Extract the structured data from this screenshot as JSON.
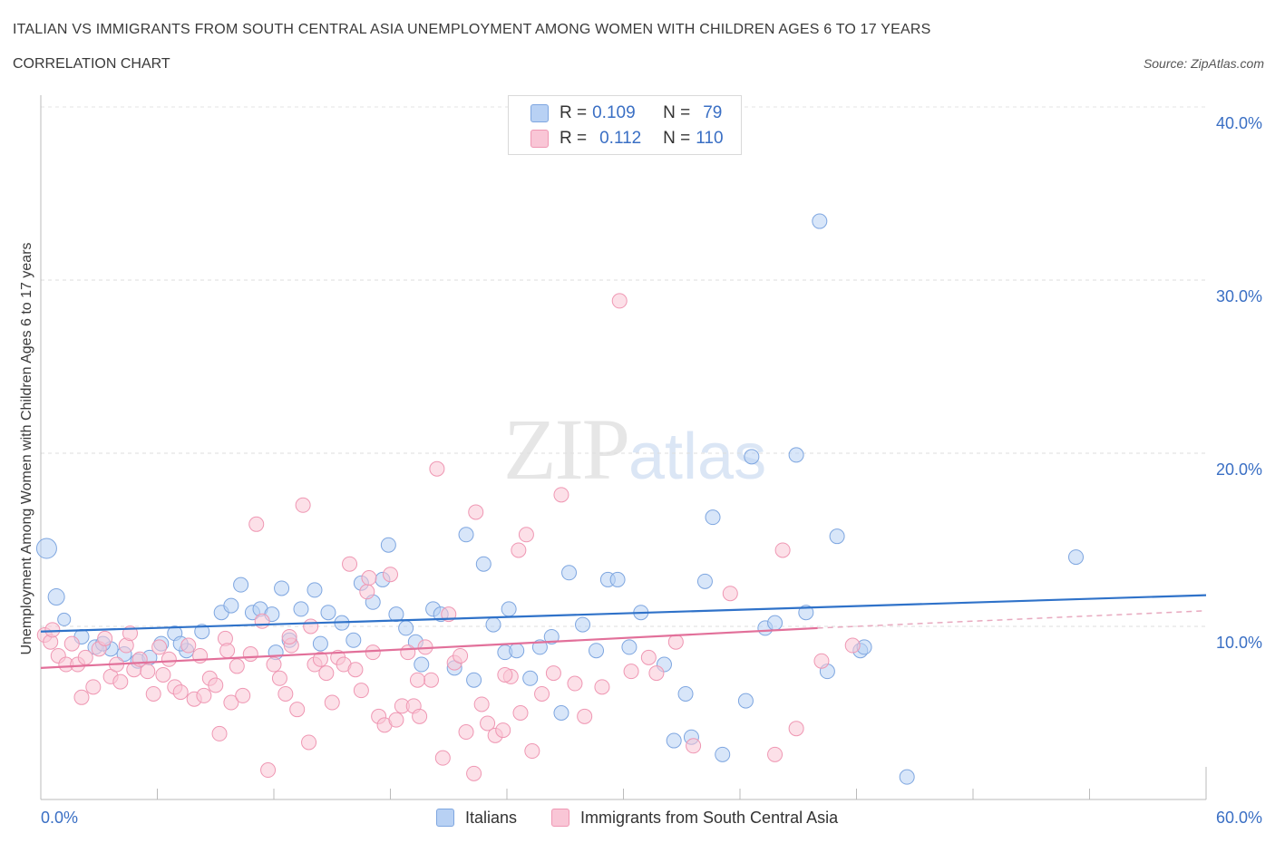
{
  "title": "ITALIAN VS IMMIGRANTS FROM SOUTH CENTRAL ASIA UNEMPLOYMENT AMONG WOMEN WITH CHILDREN AGES 6 TO 17 YEARS",
  "subtitle": "CORRELATION CHART",
  "source": "Source: ZipAtlas.com",
  "watermark": {
    "zip": "ZIP",
    "atlas": "atlas"
  },
  "legend": {
    "rows": [
      {
        "r_label": "R = ",
        "r_value": "0.109",
        "n_label": "N = ",
        "n_value": "79"
      },
      {
        "r_label": "R = ",
        "r_value": "0.112",
        "n_label": "N = ",
        "n_value": "110"
      }
    ]
  },
  "colors": {
    "italians_fill": "#b8d1f4",
    "italians_stroke": "#7ea6e0",
    "italians_line": "#2f72c9",
    "immigrants_fill": "#f9c6d6",
    "immigrants_stroke": "#ef97b3",
    "immigrants_line": "#e2709a",
    "axis_text": "#3a6fc4",
    "grid": "#dddddd"
  },
  "chart_data": {
    "type": "scatter",
    "title": "ITALIAN VS IMMIGRANTS FROM SOUTH CENTRAL ASIA UNEMPLOYMENT AMONG WOMEN WITH CHILDREN AGES 6 TO 17 YEARS",
    "subtitle": "CORRELATION CHART",
    "xlabel": "",
    "ylabel": "Unemployment Among Women with Children Ages 6 to 17 years",
    "xlim": [
      0,
      60
    ],
    "ylim": [
      0,
      40
    ],
    "x_tick_labels": [
      "0.0%",
      "60.0%"
    ],
    "y_ticks": [
      10,
      20,
      30,
      40
    ],
    "y_tick_labels": [
      "10.0%",
      "20.0%",
      "30.0%",
      "40.0%"
    ],
    "grid": true,
    "legend_placement": "top-center",
    "series": [
      {
        "name": "Italians",
        "trend": {
          "x": [
            0,
            60
          ],
          "y": [
            9.7,
            11.8
          ]
        },
        "points": [
          [
            0.3,
            14.5
          ],
          [
            0.8,
            11.7
          ],
          [
            1.2,
            10.4
          ],
          [
            2.1,
            9.4
          ],
          [
            2.8,
            8.8
          ],
          [
            3.6,
            8.7
          ],
          [
            4.3,
            8.4
          ],
          [
            5.0,
            8.0
          ],
          [
            6.2,
            9.0
          ],
          [
            6.9,
            9.6
          ],
          [
            7.5,
            8.6
          ],
          [
            8.3,
            9.7
          ],
          [
            9.3,
            10.8
          ],
          [
            9.8,
            11.2
          ],
          [
            10.3,
            12.4
          ],
          [
            10.9,
            10.8
          ],
          [
            11.3,
            11.0
          ],
          [
            11.9,
            10.7
          ],
          [
            12.4,
            12.2
          ],
          [
            12.8,
            9.2
          ],
          [
            13.4,
            11.0
          ],
          [
            14.1,
            12.1
          ],
          [
            14.4,
            9.0
          ],
          [
            14.8,
            10.8
          ],
          [
            15.5,
            10.2
          ],
          [
            16.1,
            9.2
          ],
          [
            16.5,
            12.5
          ],
          [
            17.1,
            11.4
          ],
          [
            17.6,
            12.7
          ],
          [
            17.9,
            14.7
          ],
          [
            18.3,
            10.7
          ],
          [
            18.8,
            9.9
          ],
          [
            19.3,
            9.1
          ],
          [
            19.6,
            7.8
          ],
          [
            20.2,
            11.0
          ],
          [
            20.6,
            10.7
          ],
          [
            21.3,
            7.6
          ],
          [
            21.9,
            15.3
          ],
          [
            22.3,
            6.9
          ],
          [
            22.8,
            13.6
          ],
          [
            23.3,
            10.1
          ],
          [
            23.9,
            8.5
          ],
          [
            24.1,
            11.0
          ],
          [
            25.2,
            7.0
          ],
          [
            25.7,
            8.8
          ],
          [
            26.3,
            9.4
          ],
          [
            26.8,
            5.0
          ],
          [
            27.2,
            13.1
          ],
          [
            27.9,
            10.1
          ],
          [
            28.6,
            8.6
          ],
          [
            29.2,
            12.7
          ],
          [
            29.7,
            12.7
          ],
          [
            30.3,
            8.8
          ],
          [
            30.9,
            10.8
          ],
          [
            32.1,
            7.8
          ],
          [
            32.6,
            3.4
          ],
          [
            33.2,
            6.1
          ],
          [
            33.5,
            3.6
          ],
          [
            34.2,
            12.6
          ],
          [
            34.6,
            16.3
          ],
          [
            35.1,
            2.6
          ],
          [
            36.3,
            5.7
          ],
          [
            36.6,
            19.8
          ],
          [
            37.3,
            9.9
          ],
          [
            37.8,
            10.2
          ],
          [
            38.9,
            19.9
          ],
          [
            39.4,
            10.8
          ],
          [
            40.1,
            33.4
          ],
          [
            40.5,
            7.4
          ],
          [
            41.0,
            15.2
          ],
          [
            42.2,
            8.6
          ],
          [
            42.4,
            8.8
          ],
          [
            44.6,
            1.3
          ],
          [
            53.3,
            14.0
          ],
          [
            5.6,
            8.2
          ],
          [
            7.2,
            9.0
          ],
          [
            3.2,
            9.0
          ],
          [
            12.1,
            8.5
          ],
          [
            24.5,
            8.6
          ]
        ]
      },
      {
        "name": "Immigrants from South Central Asia",
        "trend": {
          "x": [
            0,
            40
          ],
          "y": [
            7.6,
            9.9
          ]
        },
        "trend_dashed": {
          "x": [
            40,
            60
          ],
          "y": [
            9.9,
            10.9
          ]
        },
        "points": [
          [
            0.2,
            9.5
          ],
          [
            0.5,
            9.1
          ],
          [
            0.9,
            8.3
          ],
          [
            1.3,
            7.8
          ],
          [
            1.6,
            9.0
          ],
          [
            1.9,
            7.8
          ],
          [
            2.3,
            8.2
          ],
          [
            2.7,
            6.5
          ],
          [
            3.0,
            8.7
          ],
          [
            3.3,
            9.3
          ],
          [
            3.6,
            7.1
          ],
          [
            3.9,
            7.8
          ],
          [
            4.1,
            6.8
          ],
          [
            4.4,
            8.9
          ],
          [
            4.8,
            7.5
          ],
          [
            5.1,
            8.1
          ],
          [
            5.5,
            7.4
          ],
          [
            5.8,
            6.1
          ],
          [
            6.1,
            8.8
          ],
          [
            6.3,
            7.2
          ],
          [
            6.6,
            8.1
          ],
          [
            6.9,
            6.5
          ],
          [
            7.2,
            6.2
          ],
          [
            7.6,
            8.9
          ],
          [
            7.9,
            5.8
          ],
          [
            8.2,
            8.3
          ],
          [
            8.4,
            6.0
          ],
          [
            8.7,
            7.0
          ],
          [
            9.0,
            6.6
          ],
          [
            9.2,
            3.8
          ],
          [
            9.5,
            9.3
          ],
          [
            9.8,
            5.6
          ],
          [
            10.1,
            7.7
          ],
          [
            10.4,
            6.0
          ],
          [
            10.8,
            8.4
          ],
          [
            11.1,
            15.9
          ],
          [
            11.4,
            10.3
          ],
          [
            11.7,
            1.7
          ],
          [
            12.0,
            7.8
          ],
          [
            12.3,
            7.0
          ],
          [
            12.6,
            6.1
          ],
          [
            12.9,
            8.9
          ],
          [
            13.2,
            5.2
          ],
          [
            13.5,
            17.0
          ],
          [
            13.8,
            3.3
          ],
          [
            14.1,
            7.8
          ],
          [
            14.4,
            8.1
          ],
          [
            14.7,
            7.3
          ],
          [
            15.0,
            5.6
          ],
          [
            15.3,
            8.2
          ],
          [
            15.6,
            7.8
          ],
          [
            15.9,
            13.6
          ],
          [
            16.2,
            7.5
          ],
          [
            16.5,
            6.3
          ],
          [
            16.8,
            12.0
          ],
          [
            17.1,
            8.5
          ],
          [
            17.4,
            4.8
          ],
          [
            17.7,
            4.3
          ],
          [
            18.0,
            13.0
          ],
          [
            18.3,
            4.6
          ],
          [
            18.6,
            5.4
          ],
          [
            18.9,
            8.5
          ],
          [
            19.2,
            5.4
          ],
          [
            19.5,
            4.8
          ],
          [
            19.8,
            8.8
          ],
          [
            20.1,
            6.9
          ],
          [
            20.4,
            19.1
          ],
          [
            20.7,
            2.4
          ],
          [
            21.0,
            10.7
          ],
          [
            21.3,
            7.9
          ],
          [
            21.6,
            8.3
          ],
          [
            21.9,
            3.9
          ],
          [
            22.3,
            1.5
          ],
          [
            22.7,
            5.5
          ],
          [
            23.0,
            4.4
          ],
          [
            23.4,
            3.7
          ],
          [
            23.8,
            4.0
          ],
          [
            24.2,
            7.1
          ],
          [
            24.6,
            14.4
          ],
          [
            25.0,
            15.3
          ],
          [
            25.3,
            2.8
          ],
          [
            25.8,
            6.1
          ],
          [
            26.4,
            7.3
          ],
          [
            26.8,
            17.6
          ],
          [
            27.5,
            6.7
          ],
          [
            28.0,
            4.8
          ],
          [
            29.8,
            28.8
          ],
          [
            30.4,
            7.4
          ],
          [
            31.3,
            8.2
          ],
          [
            32.7,
            9.1
          ],
          [
            33.6,
            3.1
          ],
          [
            35.5,
            11.9
          ],
          [
            37.8,
            2.6
          ],
          [
            38.9,
            4.1
          ],
          [
            40.2,
            8.0
          ],
          [
            41.8,
            8.9
          ],
          [
            22.4,
            16.6
          ],
          [
            24.7,
            5.0
          ],
          [
            16.9,
            12.8
          ],
          [
            9.6,
            8.6
          ],
          [
            2.1,
            5.9
          ],
          [
            4.6,
            9.6
          ],
          [
            12.8,
            9.4
          ],
          [
            19.4,
            6.9
          ],
          [
            28.9,
            6.5
          ],
          [
            38.2,
            14.4
          ],
          [
            23.9,
            7.2
          ],
          [
            0.6,
            9.8
          ],
          [
            13.9,
            10.0
          ],
          [
            31.7,
            7.3
          ]
        ]
      }
    ]
  },
  "bottom_legend": [
    "Italians",
    "Immigrants from South Central Asia"
  ],
  "axis": {
    "ylabel": "Unemployment Among Women with Children Ages 6 to 17 years",
    "x_left": "0.0%",
    "x_right": "60.0%"
  }
}
